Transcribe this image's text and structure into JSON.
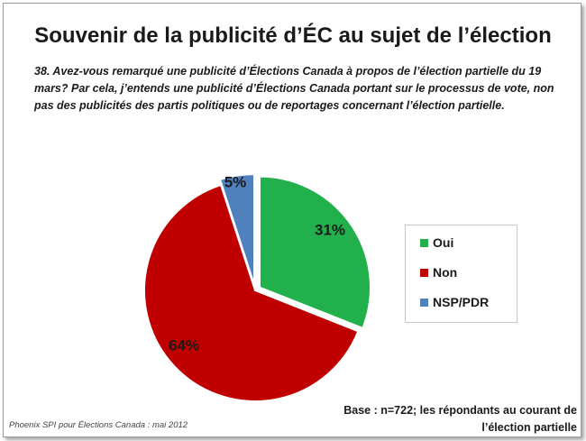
{
  "title": "Souvenir de la publicité d’ÉC au sujet de l’élection",
  "question": "38. Avez-vous remarqué une publicité d’Élections Canada à propos de l’élection partielle du 19 mars? Par cela, j’entends une publicité d’Élections Canada portant sur le processus de vote, non pas des publicités des partis politiques ou de reportages concernant l’élection partielle.",
  "base_note_line1": "Base : n=722; les répondants au courant de",
  "base_note_line2": "l’élection partielle",
  "source": "Phoenix SPI pour Élections Canada : mai 2012",
  "chart_data": {
    "type": "pie",
    "legend_position": "right",
    "slices": [
      {
        "label": "Oui",
        "value": 31,
        "display": "31%",
        "color": "#21b04c",
        "exploded": true
      },
      {
        "label": "Non",
        "value": 64,
        "display": "64%",
        "color": "#c00000",
        "exploded": false
      },
      {
        "label": "NSP/PDR",
        "value": 5,
        "display": "5%",
        "color": "#4f81bd",
        "exploded": true
      }
    ]
  }
}
